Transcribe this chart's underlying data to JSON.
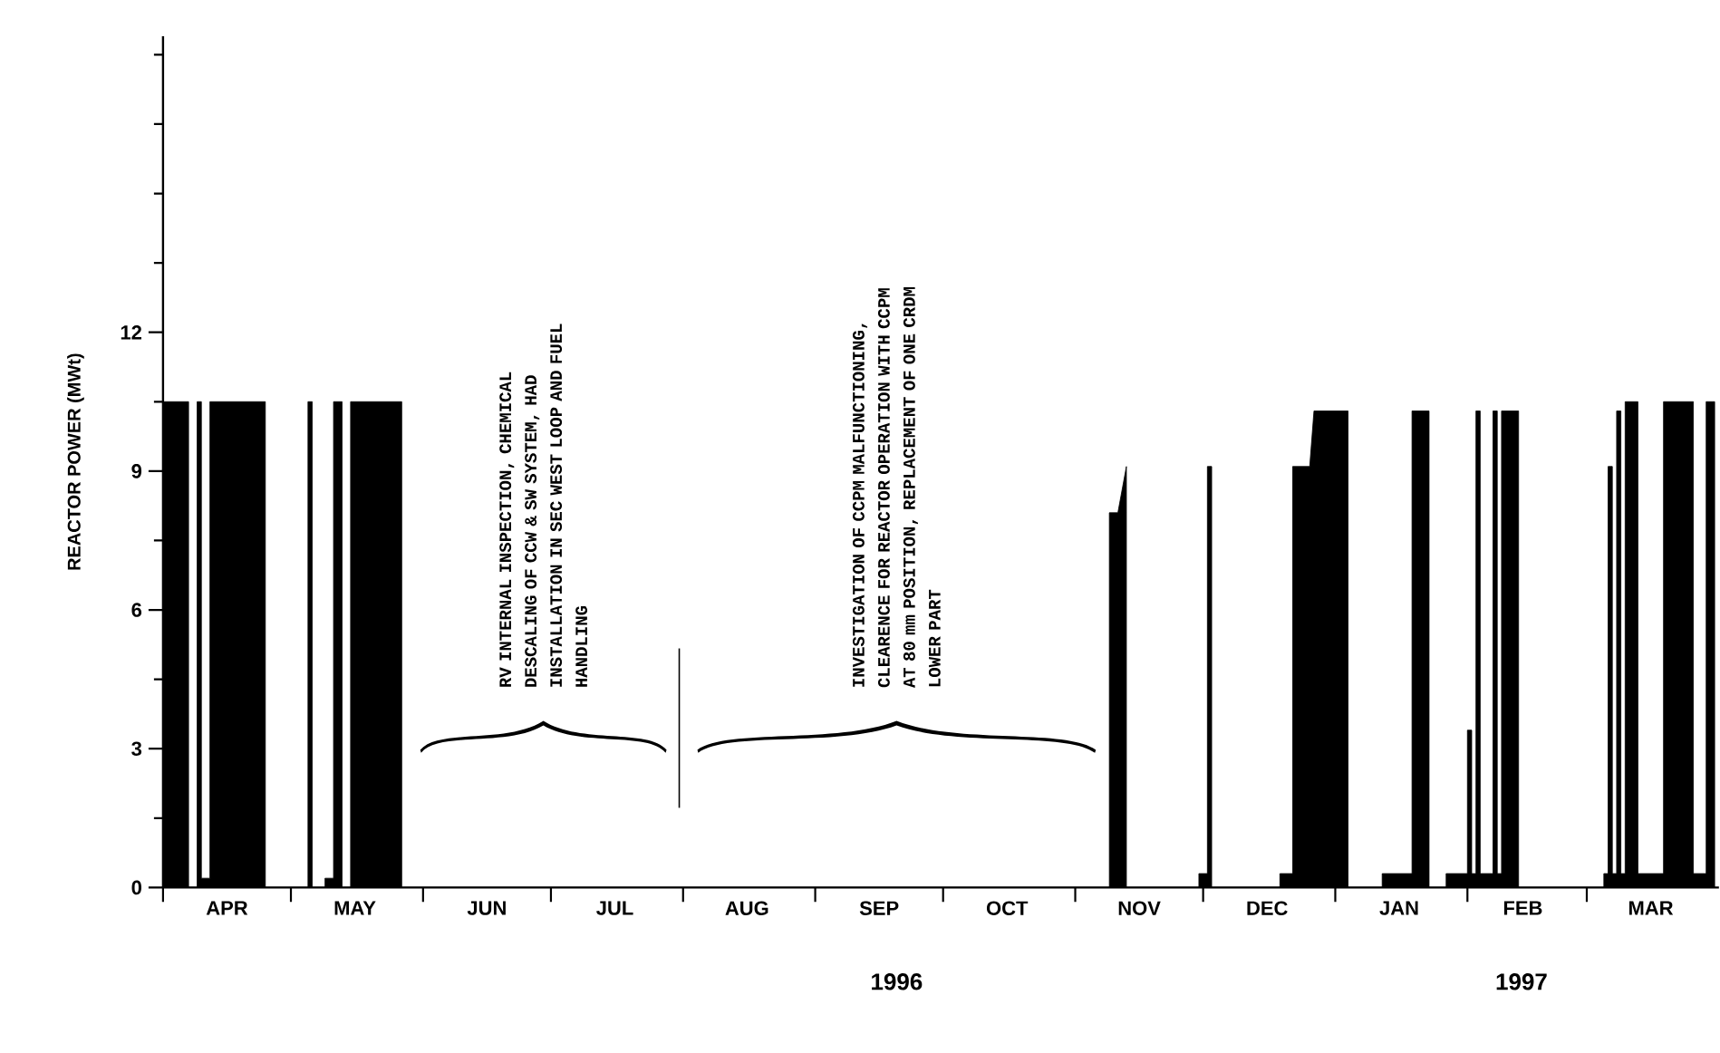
{
  "chart_data": {
    "type": "area",
    "ylabel": "REACTOR POWER (MWt)",
    "xlim": [
      "1996-04-01",
      "1997-04-01"
    ],
    "ylim": [
      0,
      18.4
    ],
    "xticks": [
      {
        "value": "1996-04-01",
        "label": null
      },
      {
        "value": "1996-05-01",
        "label": null
      },
      {
        "value": "1996-06-01",
        "label": null
      },
      {
        "value": "1996-07-01",
        "label": null
      },
      {
        "value": "1996-08-01",
        "label": null
      },
      {
        "value": "1996-09-01",
        "label": null
      },
      {
        "value": "1996-10-01",
        "label": null
      },
      {
        "value": "1996-11-01",
        "label": null
      },
      {
        "value": "1996-12-01",
        "label": null
      },
      {
        "value": "1997-01-01",
        "label": null
      },
      {
        "value": "1997-02-01",
        "label": null
      },
      {
        "value": "1997-03-01",
        "label": null
      },
      {
        "value": "1996-04-16",
        "label": "APR"
      },
      {
        "value": "1996-05-16",
        "label": "MAY"
      },
      {
        "value": "1996-06-16",
        "label": "JUN"
      },
      {
        "value": "1996-07-16",
        "label": "JUL"
      },
      {
        "value": "1996-08-16",
        "label": "AUG"
      },
      {
        "value": "1996-09-16",
        "label": "SEP"
      },
      {
        "value": "1996-10-16",
        "label": "OCT"
      },
      {
        "value": "1996-11-16",
        "label": "NOV"
      },
      {
        "value": "1996-12-16",
        "label": "DEC"
      },
      {
        "value": "1997-01-16",
        "label": "JAN"
      },
      {
        "value": "1997-02-14",
        "label": "FEB"
      },
      {
        "value": "1997-03-16",
        "label": "MAR"
      }
    ],
    "yticks": [
      0,
      3,
      6,
      9,
      12,
      {
        "value": 1.5,
        "label": null
      },
      {
        "value": 4.5,
        "label": null
      },
      {
        "value": 7.5,
        "label": null
      },
      {
        "value": 10.5,
        "label": null
      },
      {
        "value": 13.5,
        "label": null
      },
      {
        "value": 15,
        "label": null
      },
      {
        "value": 16.5,
        "label": null
      },
      {
        "value": 18,
        "label": null
      }
    ],
    "series": [
      {
        "color": "#000000",
        "x": [
          "1996-04-01",
          "1996-04-01",
          "1996-04-07",
          "1996-04-07",
          "1996-04-09",
          "1996-04-09",
          "1996-04-10",
          "1996-04-10",
          "1996-04-12",
          "1996-04-12",
          "1996-04-25",
          "1996-04-25",
          "1996-05-05",
          "1996-05-05",
          "1996-05-06",
          "1996-05-06",
          "1996-05-09",
          "1996-05-09",
          "1996-05-11",
          "1996-05-11",
          "1996-05-13",
          "1996-05-13",
          "1996-05-15",
          "1996-05-15",
          "1996-05-27",
          "1996-05-27",
          "1996-11-09",
          "1996-11-09",
          "1996-11-11",
          "1996-11-13",
          "1996-11-13",
          "1996-11-30",
          "1996-11-30",
          "1996-12-02",
          "1996-12-02",
          "1996-12-03",
          "1996-12-03",
          "1996-12-19",
          "1996-12-19",
          "1996-12-22",
          "1996-12-22",
          "1996-12-26",
          "1996-12-27",
          "1997-01-04",
          "1997-01-04",
          "1997-01-12",
          "1997-01-12",
          "1997-01-19",
          "1997-01-19",
          "1997-01-23",
          "1997-01-23",
          "1997-01-27",
          "1997-01-27",
          "1997-02-01",
          "1997-02-01",
          "1997-02-02",
          "1997-02-02",
          "1997-02-03",
          "1997-02-03",
          "1997-02-04",
          "1997-02-04",
          "1997-02-07",
          "1997-02-07",
          "1997-02-08",
          "1997-02-08",
          "1997-02-09",
          "1997-02-09",
          "1997-02-13",
          "1997-02-13",
          "1997-03-05",
          "1997-03-05",
          "1997-03-06",
          "1997-03-06",
          "1997-03-07",
          "1997-03-07",
          "1997-03-08",
          "1997-03-08",
          "1997-03-09",
          "1997-03-09",
          "1997-03-10",
          "1997-03-10",
          "1997-03-13",
          "1997-03-13",
          "1997-03-19",
          "1997-03-19",
          "1997-03-26",
          "1997-03-26",
          "1997-03-29",
          "1997-03-29",
          "1997-03-31"
        ],
        "values": [
          0,
          10.5,
          10.5,
          0,
          0,
          10.5,
          10.5,
          0.2,
          0.2,
          10.5,
          10.5,
          0,
          0,
          10.5,
          10.5,
          0,
          0,
          0.2,
          0.2,
          10.5,
          10.5,
          0,
          0,
          10.5,
          10.5,
          0,
          0,
          8.1,
          8.1,
          9.1,
          0,
          0,
          0.3,
          0.3,
          9.1,
          9.1,
          0,
          0,
          0.3,
          0.3,
          9.1,
          9.1,
          10.3,
          10.3,
          0,
          0,
          0.3,
          0.3,
          10.3,
          10.3,
          0,
          0,
          0.3,
          0.3,
          3.4,
          3.4,
          0.3,
          0.3,
          10.3,
          10.3,
          0.3,
          0.3,
          10.3,
          10.3,
          0.3,
          0.3,
          10.3,
          10.3,
          0,
          0,
          0.3,
          0.3,
          9.1,
          9.1,
          0.3,
          0.3,
          10.3,
          10.3,
          0.3,
          0.3,
          10.5,
          10.5,
          0.3,
          0.3,
          10.5,
          10.5,
          0.3,
          0.3,
          10.5,
          10.5
        ]
      }
    ],
    "annotations": [
      "RV INTERNAL INSPECTION, CHEMICAL DESCALING OF CCW & SW SYSTEM, HAD INSTALLATION IN SEC WEST LOOP AND FUEL HANDLING",
      "INVESTIGATION OF CCPM MALFUNCTIONING, CLEARENCE FOR REACTOR OPERATION WITH CCPM AT 80 mm POSITION, REPLACEMENT OF ONE CRDM LOWER PART",
      "1996",
      "1997"
    ]
  }
}
